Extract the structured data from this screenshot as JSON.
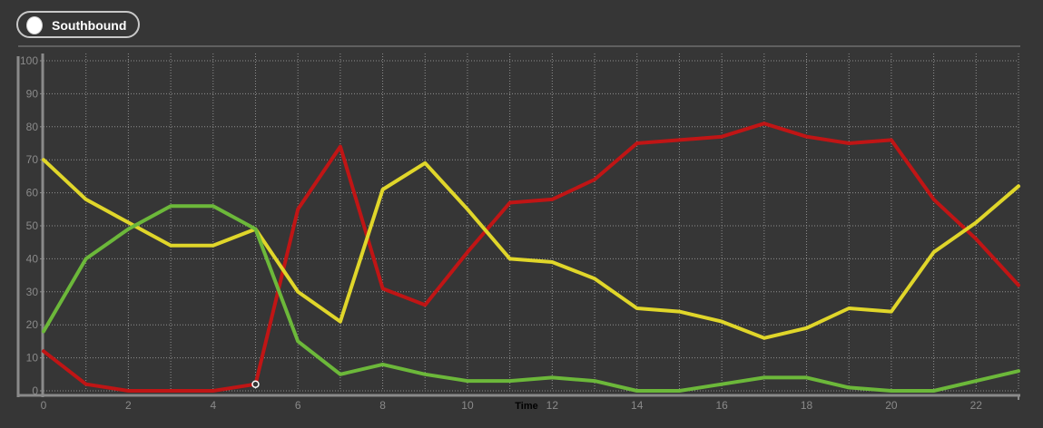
{
  "toggle": {
    "label": "Southbound",
    "state": "on"
  },
  "colors": {
    "background": "#363636",
    "grid": "#8f8f8f",
    "axis": "#8a8a8a",
    "red": "#c01515",
    "yellow": "#e0d62a",
    "green": "#6cb83a"
  },
  "chart_data": {
    "type": "line",
    "title": "",
    "xlabel": "Time",
    "ylabel": "",
    "xlim": [
      0,
      23
    ],
    "ylim": [
      0,
      100
    ],
    "x_ticks": [
      0,
      2,
      4,
      6,
      8,
      10,
      12,
      14,
      16,
      18,
      20,
      22
    ],
    "y_ticks": [
      0,
      10,
      20,
      30,
      40,
      50,
      60,
      70,
      80,
      90,
      100
    ],
    "grid": true,
    "x": [
      0,
      1,
      2,
      3,
      4,
      5,
      6,
      7,
      8,
      9,
      10,
      11,
      12,
      13,
      14,
      15,
      16,
      17,
      18,
      19,
      20,
      21,
      22,
      23
    ],
    "series": [
      {
        "color": "#c01515",
        "values": [
          12,
          2,
          0,
          0,
          0,
          2,
          55,
          74,
          31,
          26,
          42,
          57,
          58,
          64,
          75,
          76,
          77,
          81,
          77,
          75,
          76,
          58,
          46,
          32
        ]
      },
      {
        "color": "#e0d62a",
        "values": [
          70,
          58,
          51,
          44,
          44,
          49,
          30,
          21,
          61,
          69,
          55,
          40,
          39,
          34,
          25,
          24,
          21,
          16,
          19,
          25,
          24,
          42,
          51,
          62
        ]
      },
      {
        "color": "#6cb83a",
        "values": [
          18,
          40,
          49,
          56,
          56,
          49,
          15,
          5,
          8,
          5,
          3,
          3,
          4,
          3,
          0,
          0,
          2,
          4,
          4,
          1,
          0,
          0,
          3,
          6
        ]
      }
    ],
    "marker": {
      "x": 5,
      "y": 2
    }
  }
}
